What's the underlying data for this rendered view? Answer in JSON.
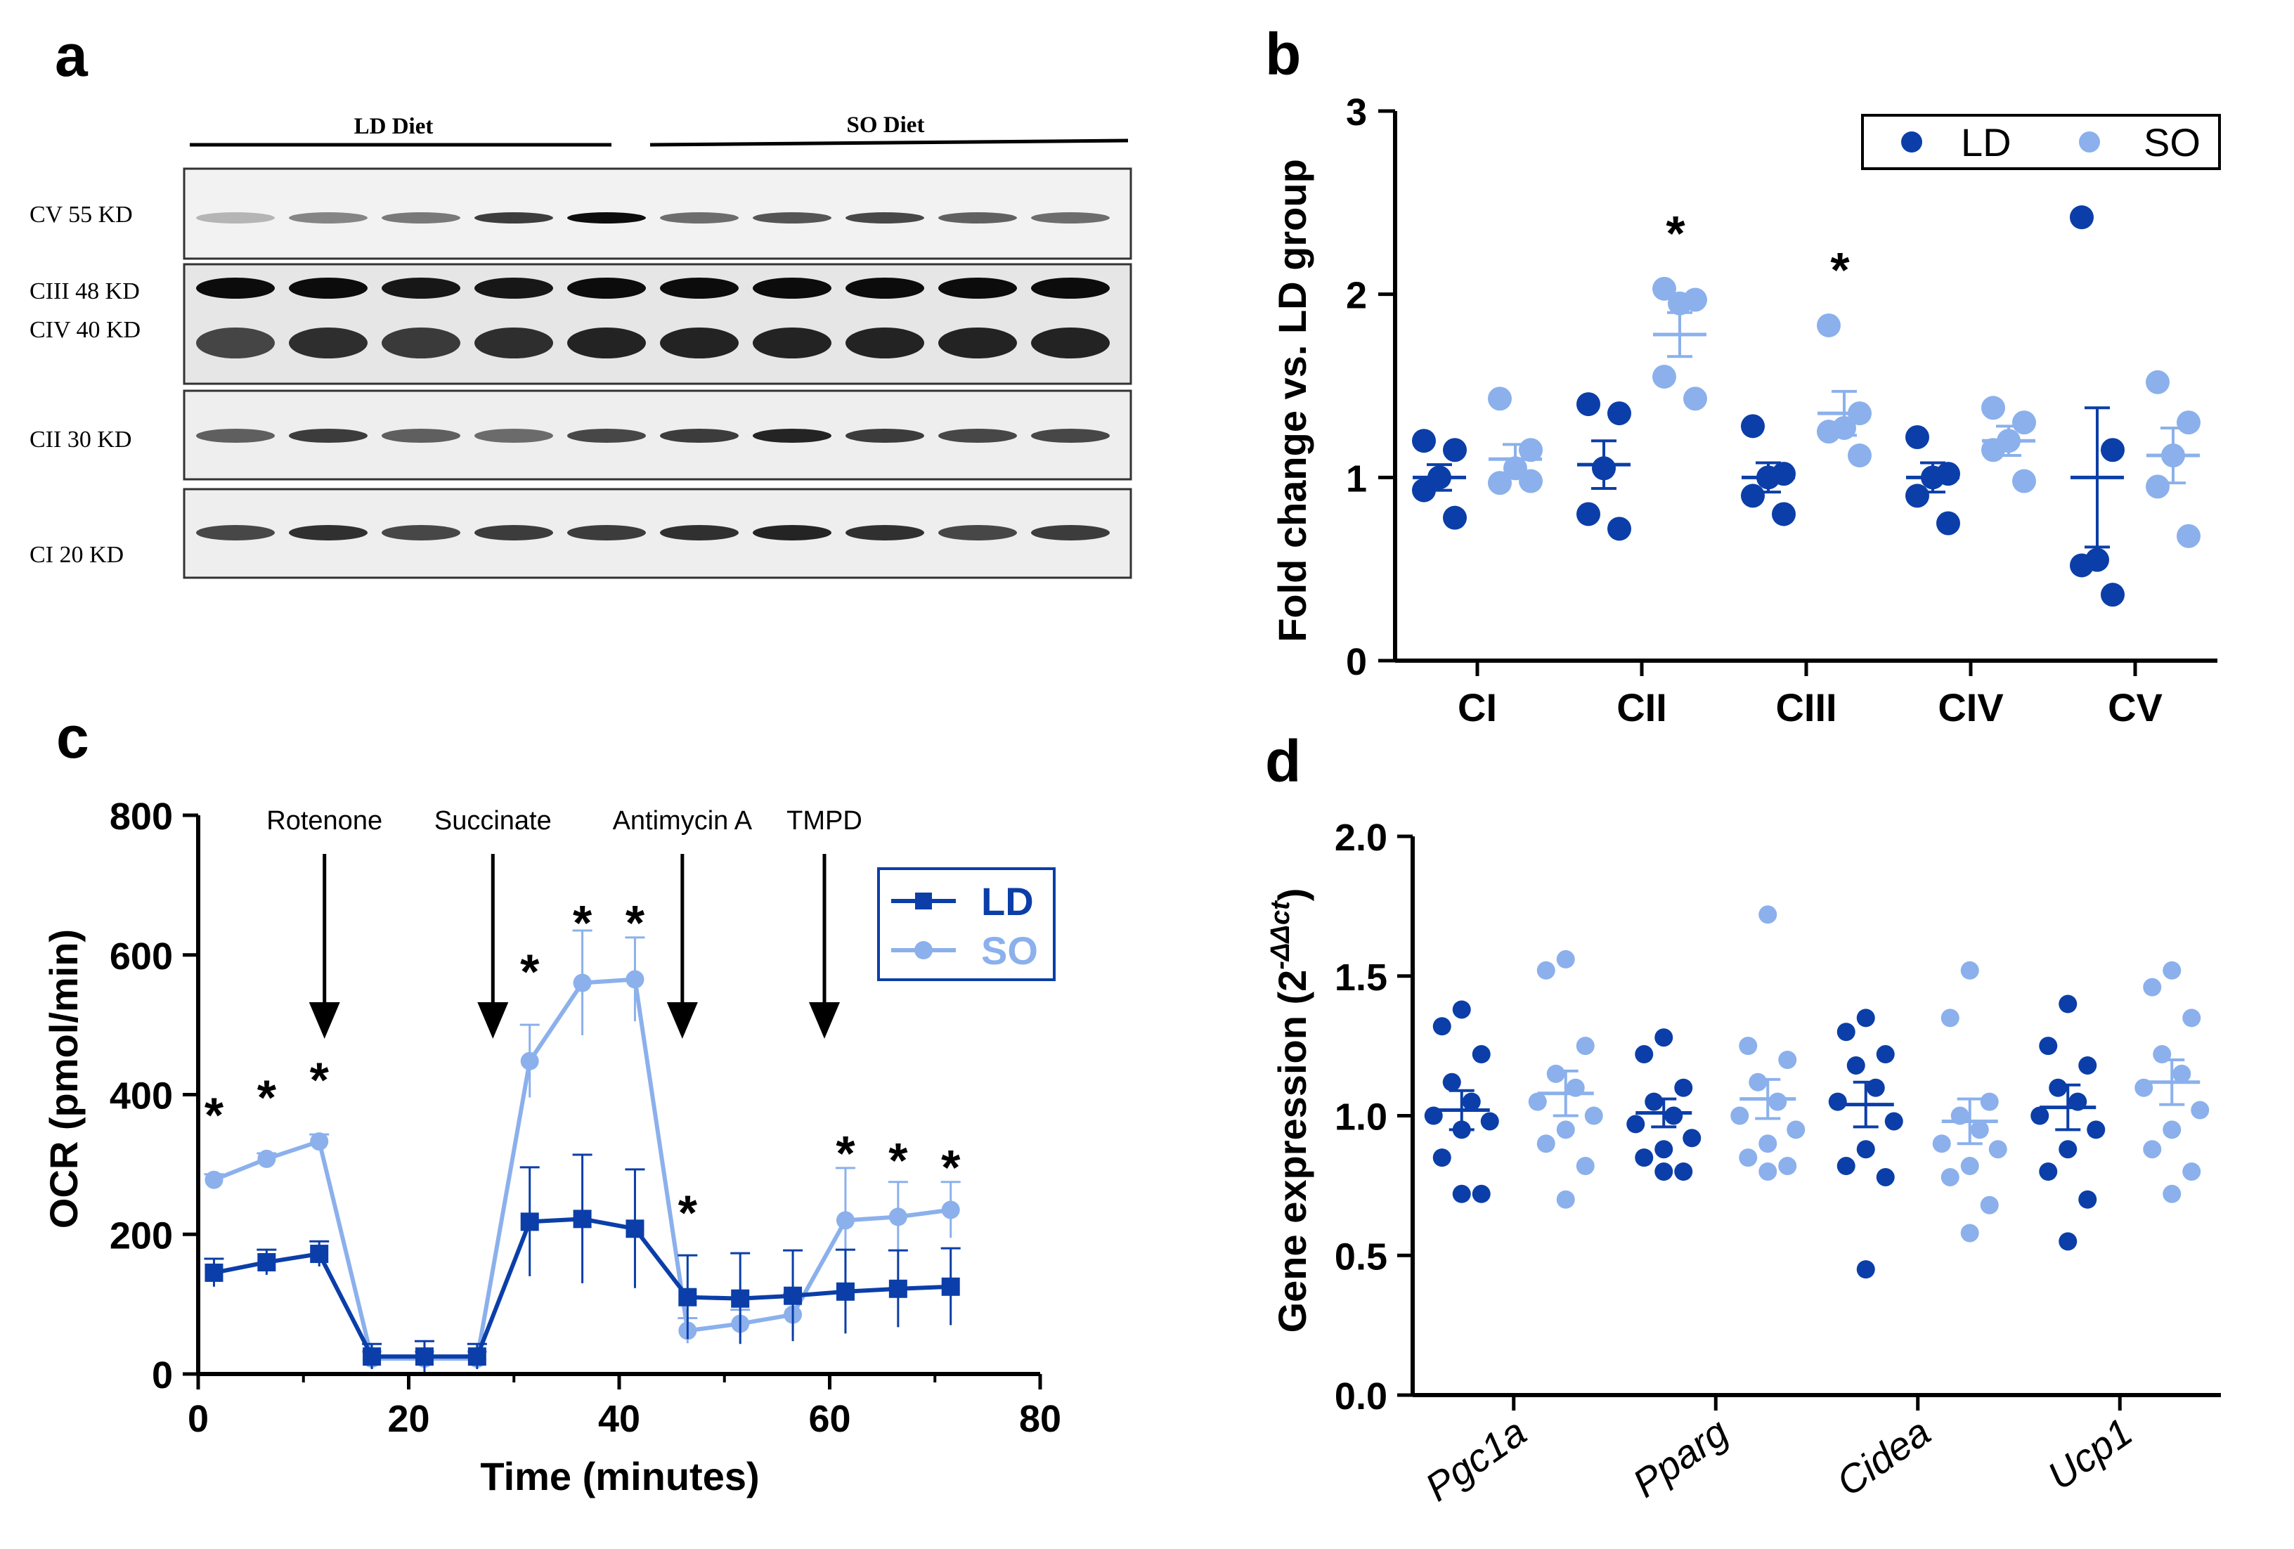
{
  "panel_labels": {
    "a": "a",
    "b": "b",
    "c": "c",
    "d": "d"
  },
  "colors": {
    "ld": "#0b3ea8",
    "so": "#8bb0ec",
    "ink": "#000000"
  },
  "blot": {
    "groups": [
      "LD Diet",
      "SO Diet"
    ],
    "rows": [
      {
        "label": "CV 55 KD"
      },
      {
        "label": "CIII 48 KD",
        "label2": "CIV 40 KD"
      },
      {
        "label": "CII 30 KD"
      },
      {
        "label": "CI 20 KD"
      }
    ],
    "lanes": 10
  },
  "chart_data": [
    {
      "panel": "b",
      "type": "scatter",
      "title": "",
      "xlabel": "",
      "ylabel": "Fold change vs. LD group",
      "ylim": [
        0,
        3
      ],
      "yticks": [
        "0",
        "1",
        "2",
        "3"
      ],
      "categories": [
        "CI",
        "CII",
        "CIII",
        "CIV",
        "CV"
      ],
      "legend": [
        "LD",
        "SO"
      ],
      "legend_position": "top-right",
      "significance": [
        "",
        "*",
        "*",
        "",
        ""
      ],
      "series": [
        {
          "name": "LD",
          "points": [
            [
              1.2,
              1.15,
              1.0,
              0.93,
              0.78
            ],
            [
              1.4,
              1.35,
              1.05,
              0.8,
              0.72
            ],
            [
              1.28,
              1.02,
              1.0,
              0.9,
              0.8
            ],
            [
              1.22,
              1.02,
              1.0,
              0.9,
              0.75
            ],
            [
              2.42,
              1.15,
              0.55,
              0.52,
              0.36
            ]
          ],
          "mean": [
            1.0,
            1.07,
            1.0,
            1.0,
            1.0
          ],
          "sem": [
            0.07,
            0.13,
            0.08,
            0.08,
            0.38
          ]
        },
        {
          "name": "SO",
          "points": [
            [
              1.43,
              1.15,
              1.05,
              0.97,
              0.98
            ],
            [
              2.03,
              1.97,
              1.95,
              1.55,
              1.43
            ],
            [
              1.83,
              1.35,
              1.27,
              1.25,
              1.12
            ],
            [
              1.38,
              1.3,
              1.2,
              1.15,
              0.98
            ],
            [
              1.52,
              1.3,
              1.12,
              0.95,
              0.68
            ]
          ],
          "mean": [
            1.1,
            1.78,
            1.35,
            1.2,
            1.12
          ],
          "sem": [
            0.08,
            0.12,
            0.12,
            0.08,
            0.15
          ]
        }
      ]
    },
    {
      "panel": "c",
      "type": "line",
      "title": "",
      "xlabel": "Time (minutes)",
      "ylabel": "OCR (pmol/min)",
      "xlim": [
        0,
        80
      ],
      "ylim": [
        0,
        800
      ],
      "xticks": [
        "0",
        "20",
        "40",
        "60",
        "80"
      ],
      "yticks": [
        "0",
        "200",
        "400",
        "600",
        "800"
      ],
      "legend": [
        "LD",
        "SO"
      ],
      "legend_position": "top-right",
      "x": [
        1.5,
        6.5,
        11.5,
        16.5,
        21.5,
        26.5,
        31.5,
        36.5,
        41.5,
        46.5,
        51.5,
        56.5,
        61.5,
        66.5,
        71.5
      ],
      "series": [
        {
          "name": "LD",
          "values": [
            145,
            160,
            172,
            25,
            25,
            25,
            218,
            222,
            208,
            110,
            108,
            112,
            118,
            122,
            125
          ],
          "err": [
            20,
            18,
            18,
            18,
            22,
            18,
            78,
            92,
            85,
            60,
            65,
            65,
            60,
            55,
            55
          ]
        },
        {
          "name": "SO",
          "values": [
            278,
            308,
            333,
            22,
            22,
            22,
            448,
            560,
            565,
            62,
            72,
            85,
            220,
            225,
            235
          ],
          "err": [
            8,
            8,
            10,
            10,
            10,
            10,
            52,
            75,
            60,
            18,
            20,
            30,
            75,
            50,
            40
          ]
        }
      ],
      "significance_x": [
        1.5,
        6.5,
        11.5,
        31.5,
        36.5,
        41.5,
        46.5,
        61.5,
        66.5,
        71.5
      ],
      "significance_y": [
        375,
        400,
        425,
        580,
        650,
        650,
        235,
        320,
        310,
        300
      ],
      "annotations": [
        {
          "label": "Rotenone",
          "x": 12
        },
        {
          "label": "Succinate",
          "x": 28
        },
        {
          "label": "Antimycin  A",
          "x": 46
        },
        {
          "label": "TMPD",
          "x": 59.5
        }
      ],
      "arrow_y": [
        800,
        480
      ]
    },
    {
      "panel": "d",
      "type": "scatter",
      "title": "",
      "xlabel": "",
      "ylabel": "Gene expression (2",
      "ylabel_sup": "-ΔΔct",
      "ylabel_close": ")",
      "ylim": [
        0,
        2
      ],
      "yticks": [
        "0.0",
        "0.5",
        "1.0",
        "1.5",
        "2.0"
      ],
      "categories": [
        "Pgc1a",
        "Pparg",
        "Cidea",
        "Ucp1"
      ],
      "series": [
        {
          "name": "LD",
          "points": [
            [
              1.38,
              1.32,
              1.22,
              1.12,
              1.05,
              1.0,
              0.98,
              0.95,
              0.85,
              0.72,
              0.72
            ],
            [
              1.28,
              1.22,
              1.1,
              1.05,
              1.0,
              0.97,
              0.92,
              0.88,
              0.85,
              0.8,
              0.8
            ],
            [
              1.35,
              1.3,
              1.22,
              1.18,
              1.1,
              1.05,
              0.98,
              0.88,
              0.82,
              0.78,
              0.45
            ],
            [
              1.4,
              1.25,
              1.18,
              1.1,
              1.05,
              1.0,
              0.95,
              0.88,
              0.8,
              0.7,
              0.55
            ]
          ],
          "mean": [
            1.02,
            1.01,
            1.04,
            1.03
          ],
          "sem": [
            0.07,
            0.05,
            0.08,
            0.08
          ]
        },
        {
          "name": "SO",
          "points": [
            [
              1.56,
              1.52,
              1.25,
              1.15,
              1.1,
              1.05,
              1.0,
              0.95,
              0.9,
              0.82,
              0.7
            ],
            [
              1.72,
              1.25,
              1.2,
              1.12,
              1.05,
              1.0,
              0.95,
              0.9,
              0.85,
              0.82,
              0.8
            ],
            [
              1.52,
              1.35,
              1.05,
              1.0,
              0.95,
              0.9,
              0.88,
              0.82,
              0.78,
              0.68,
              0.58
            ],
            [
              1.52,
              1.46,
              1.35,
              1.22,
              1.15,
              1.1,
              1.02,
              0.95,
              0.88,
              0.8,
              0.72
            ]
          ],
          "mean": [
            1.08,
            1.06,
            0.98,
            1.12
          ],
          "sem": [
            0.08,
            0.07,
            0.08,
            0.08
          ]
        }
      ]
    }
  ]
}
